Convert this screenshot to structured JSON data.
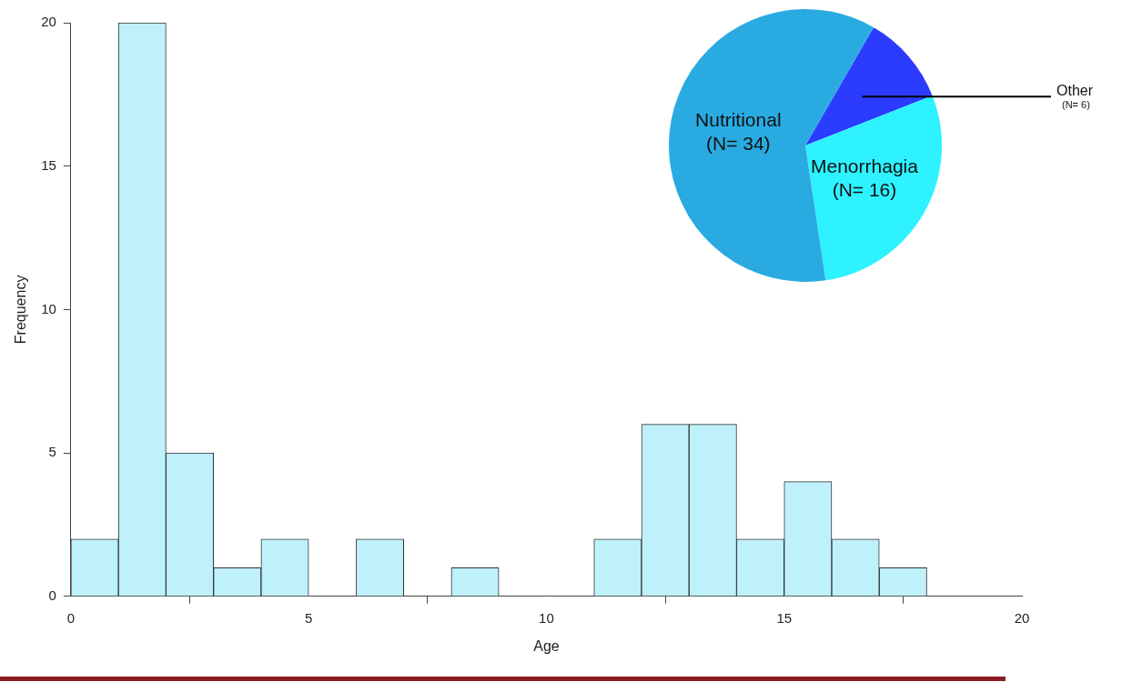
{
  "chart_data": [
    {
      "type": "histogram",
      "x_label": "Age",
      "y_label": "Frequency",
      "bins": [
        0,
        1,
        2,
        3,
        4,
        5,
        6,
        7,
        8,
        9,
        10,
        11,
        12,
        13,
        14,
        15,
        16,
        17,
        18
      ],
      "counts": [
        2,
        20,
        5,
        1,
        2,
        0,
        2,
        0,
        1,
        0,
        0,
        2,
        6,
        6,
        2,
        4,
        2,
        1
      ],
      "color": "#bff1fb",
      "xlim": [
        0,
        20
      ],
      "xticks": [
        0,
        5,
        10,
        15,
        20
      ],
      "ylim": [
        0,
        20
      ],
      "yticks": [
        0,
        5,
        10,
        15,
        20
      ],
      "grid": false
    },
    {
      "type": "pie",
      "categories": [
        "Other",
        "Menorrhagia",
        "Nutritional"
      ],
      "values": [
        6,
        16,
        34
      ],
      "value_labels": [
        "(N= 6)",
        "(N= 16)",
        "(N= 34)"
      ],
      "colors": [
        "#2b3cff",
        "#2ef2ff",
        "#29abe2"
      ],
      "data_labels": true
    }
  ]
}
